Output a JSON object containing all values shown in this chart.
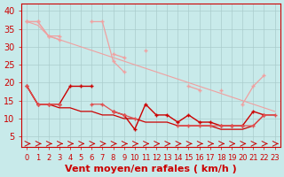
{
  "x": [
    0,
    1,
    2,
    3,
    4,
    5,
    6,
    7,
    8,
    9,
    10,
    11,
    12,
    13,
    14,
    15,
    16,
    17,
    18,
    19,
    20,
    21,
    22,
    23
  ],
  "line1": [
    37,
    37,
    33,
    33,
    null,
    null,
    37,
    37,
    26,
    23,
    null,
    29,
    null,
    null,
    null,
    19,
    18,
    null,
    18,
    null,
    14,
    19,
    22,
    null
  ],
  "line2": [
    37,
    37,
    33,
    32,
    null,
    null,
    null,
    null,
    28,
    27,
    null,
    null,
    null,
    null,
    null,
    null,
    null,
    null,
    null,
    null,
    null,
    null,
    null,
    null
  ],
  "line3": [
    37,
    36,
    33,
    32,
    31,
    30,
    29,
    28,
    27,
    26,
    25,
    24,
    23,
    22,
    21,
    20,
    19,
    18,
    17,
    16,
    15,
    14,
    13,
    12
  ],
  "line4": [
    19,
    14,
    14,
    14,
    19,
    19,
    19,
    null,
    12,
    11,
    7,
    14,
    11,
    11,
    9,
    11,
    9,
    9,
    8,
    8,
    8,
    12,
    11,
    null
  ],
  "line5": [
    19,
    14,
    14,
    14,
    null,
    null,
    14,
    14,
    12,
    11,
    10,
    null,
    null,
    null,
    8,
    8,
    8,
    8,
    8,
    8,
    8,
    8,
    11,
    11
  ],
  "line6": [
    19,
    14,
    14,
    13,
    13,
    12,
    12,
    11,
    11,
    10,
    10,
    9,
    9,
    9,
    8,
    8,
    8,
    8,
    7,
    7,
    7,
    8,
    11,
    11
  ],
  "wind_arrows_y": [
    3,
    3,
    3,
    3,
    3,
    3,
    3,
    3,
    3,
    3,
    3,
    3,
    3,
    3,
    3,
    3,
    3,
    3,
    3,
    3,
    3,
    3,
    3,
    3
  ],
  "bg_color": "#c8eaea",
  "grid_color": "#aacccc",
  "line_color_light": "#f0a0a0",
  "line_color_mid": "#e05050",
  "line_color_dark": "#cc0000",
  "arrow_color": "#cc0000",
  "xlabel": "Vent moyen/en rafales ( km/h )",
  "ylabel_ticks": [
    5,
    10,
    15,
    20,
    25,
    30,
    35,
    40
  ],
  "ylim": [
    2,
    42
  ],
  "xlim": [
    -0.5,
    23.5
  ],
  "title_fontsize": 9,
  "axis_fontsize": 7,
  "label_fontsize": 8
}
